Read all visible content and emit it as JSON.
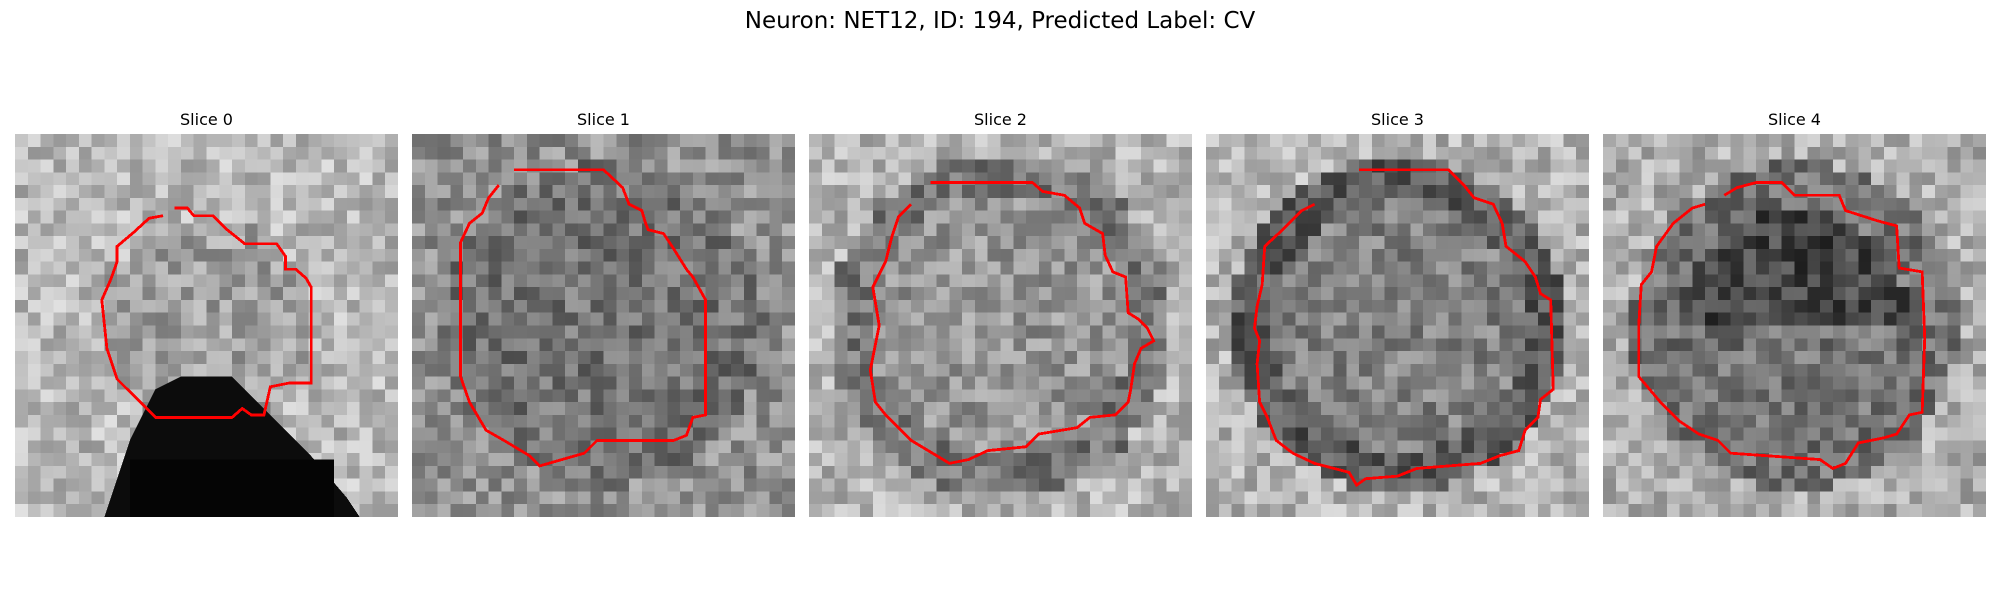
{
  "figure": {
    "title": "Neuron: NET12, ID: 194, Predicted Label: CV"
  },
  "slices": [
    {
      "label": "Slice 0"
    },
    {
      "label": "Slice 1"
    },
    {
      "label": "Slice 2"
    },
    {
      "label": "Slice 3"
    },
    {
      "label": "Slice 4"
    }
  ],
  "colors": {
    "contour": "#ff0000",
    "background": "#ffffff"
  }
}
